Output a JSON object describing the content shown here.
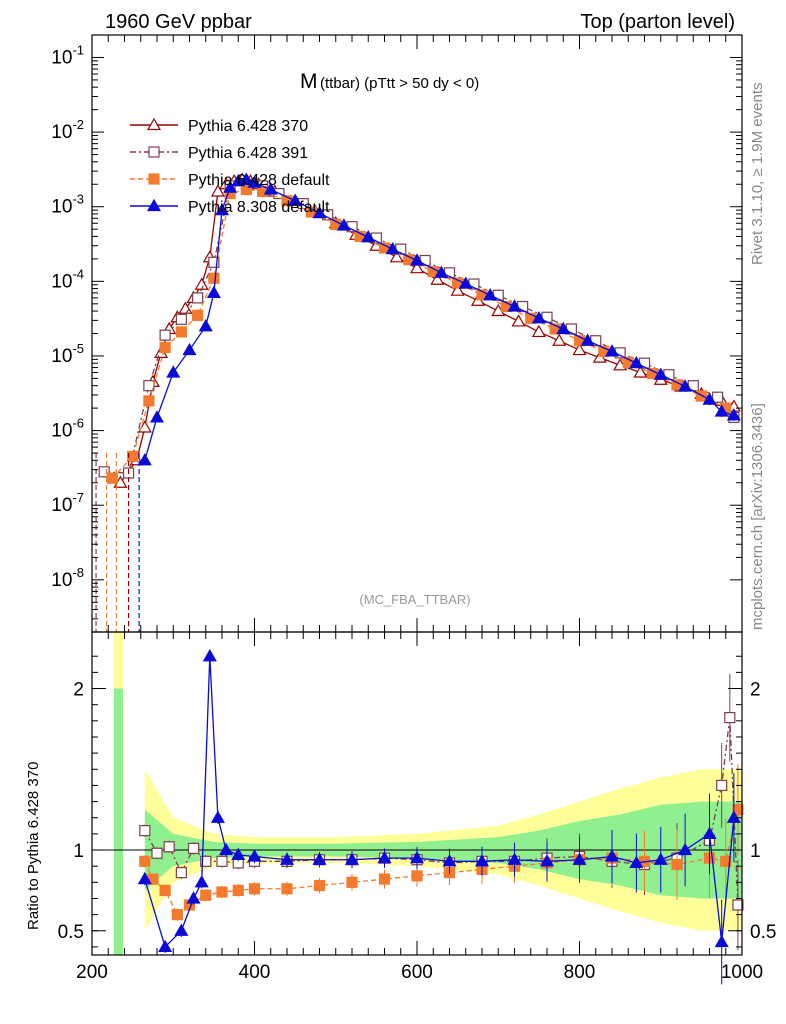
{
  "header": {
    "left": "1960 GeV ppbar",
    "right": "Top (parton level)"
  },
  "side_text": {
    "rivet": "Rivet 3.1.10, ≥ 1.9M events",
    "mcplots": "mcplots.cern.ch [arXiv:1306.3436]"
  },
  "main_title": {
    "main": "M",
    "sub": "(ttbar) (pTtt > 50 dy < 0)"
  },
  "analysis_label": "(MC_FBA_TTBAR)",
  "ratio_ylabel": "Ratio to Pythia 6.428 370",
  "colors": {
    "p6_370": "#990000",
    "p6_391": "#7a3f4f",
    "p6_default": "#f47a2e",
    "p8_default": "#0a0ad8",
    "band_green": "#90f090",
    "band_yellow": "#ffff99"
  },
  "chart_data": [
    {
      "type": "line",
      "name": "main",
      "log_y": true,
      "xlim": [
        200,
        1000
      ],
      "ylim": [
        2e-09,
        0.2
      ],
      "y_ticks": [
        "10^-8",
        "10^-7",
        "10^-6",
        "10^-5",
        "10^-4",
        "10^-3",
        "10^-2",
        "10^-1"
      ],
      "legend_position": "top-left",
      "series": [
        {
          "name": "Pythia 6.428 370",
          "x": [
            235,
            255,
            265,
            275,
            285,
            295,
            305,
            315,
            325,
            335,
            345,
            355,
            365,
            375,
            385,
            395,
            405,
            425,
            450,
            475,
            500,
            525,
            550,
            575,
            600,
            625,
            650,
            675,
            700,
            725,
            750,
            775,
            800,
            825,
            850,
            875,
            900,
            925,
            950,
            975,
            990
          ],
          "y": [
            2e-07,
            4e-07,
            1.1e-06,
            4.5e-06,
            1.1e-05,
            2.3e-05,
            3.3e-05,
            4.3e-05,
            6e-05,
            9e-05,
            0.00021,
            0.0016,
            0.002,
            0.0022,
            0.0023,
            0.0022,
            0.002,
            0.0016,
            0.0012,
            0.00085,
            0.0006,
            0.00042,
            0.0003,
            0.00021,
            0.00015,
            0.000105,
            7.5e-05,
            5.5e-05,
            4e-05,
            2.9e-05,
            2.1e-05,
            1.6e-05,
            1.2e-05,
            9.5e-06,
            7.5e-06,
            6e-06,
            4.8e-06,
            3.9e-06,
            3.1e-06,
            2.5e-06,
            2.1e-06
          ]
        },
        {
          "name": "Pythia 6.428 391",
          "x": [
            215,
            245,
            270,
            290,
            310,
            330,
            350,
            370,
            390,
            410,
            430,
            460,
            490,
            520,
            550,
            580,
            610,
            640,
            670,
            700,
            730,
            760,
            790,
            820,
            850,
            880,
            910,
            940,
            970,
            990
          ],
          "y": [
            2.8e-07,
            2.7e-07,
            4e-06,
            1.9e-05,
            3.1e-05,
            6e-05,
            0.00018,
            0.0019,
            0.002,
            0.0019,
            0.0015,
            0.0011,
            0.00078,
            0.00054,
            0.00038,
            0.00027,
            0.00019,
            0.00013,
            9.2e-05,
            6.5e-05,
            4.6e-05,
            3.3e-05,
            2.3e-05,
            1.6e-05,
            1.1e-05,
            8e-06,
            5.6e-06,
            4e-06,
            2.8e-06,
            1.5e-06
          ]
        },
        {
          "name": "Pythia 6.428 default",
          "x": [
            225,
            250,
            270,
            290,
            310,
            330,
            350,
            370,
            390,
            410,
            440,
            470,
            500,
            530,
            560,
            590,
            620,
            650,
            680,
            710,
            740,
            770,
            800,
            830,
            860,
            890,
            920,
            950,
            980
          ],
          "y": [
            2.3e-07,
            4.5e-07,
            2.5e-06,
            1.3e-05,
            2.1e-05,
            3.5e-05,
            0.00011,
            0.0015,
            0.0017,
            0.0016,
            0.0012,
            0.00085,
            0.00058,
            0.0004,
            0.00028,
            0.000195,
            0.000135,
            9.5e-05,
            6.6e-05,
            4.6e-05,
            3.2e-05,
            2.3e-05,
            1.6e-05,
            1.15e-05,
            8.2e-06,
            5.8e-06,
            4.1e-06,
            2.9e-06,
            2e-06
          ]
        },
        {
          "name": "Pythia 8.308 default",
          "x": [
            265,
            280,
            300,
            320,
            340,
            350,
            360,
            370,
            380,
            390,
            400,
            420,
            450,
            480,
            510,
            540,
            570,
            600,
            630,
            660,
            690,
            720,
            750,
            780,
            810,
            840,
            870,
            900,
            930,
            960,
            975,
            990
          ],
          "y": [
            4e-07,
            1.5e-06,
            6e-06,
            1.2e-05,
            2.5e-05,
            7e-05,
            0.0009,
            0.0018,
            0.0022,
            0.0023,
            0.0021,
            0.0017,
            0.0012,
            0.00082,
            0.00056,
            0.00039,
            0.00027,
            0.00019,
            0.00013,
            9.3e-05,
            6.5e-05,
            4.6e-05,
            3.2e-05,
            2.3e-05,
            1.6e-05,
            1.15e-05,
            8e-06,
            5.6e-06,
            3.9e-06,
            2.6e-06,
            1.8e-06,
            1.6e-06
          ]
        }
      ]
    },
    {
      "type": "line",
      "name": "ratio",
      "ylabel": "Ratio to Pythia 6.428 370",
      "xlim": [
        200,
        1000
      ],
      "ylim": [
        0.35,
        2.35
      ],
      "x_ticks": [
        200,
        400,
        600,
        800,
        1000
      ],
      "y_ticks": [
        0.5,
        1,
        2
      ],
      "band": {
        "x": [
          265,
          300,
          350,
          400,
          500,
          600,
          700,
          750,
          800,
          850,
          900,
          950,
          1000
        ],
        "green": [
          0.25,
          0.1,
          0.05,
          0.04,
          0.04,
          0.05,
          0.08,
          0.12,
          0.18,
          0.22,
          0.28,
          0.3,
          0.3
        ],
        "yellow": [
          0.5,
          0.2,
          0.1,
          0.08,
          0.08,
          0.1,
          0.15,
          0.22,
          0.3,
          0.38,
          0.45,
          0.5,
          0.5
        ]
      },
      "series": [
        {
          "name": "Pythia 6.428 391",
          "x": [
            265,
            280,
            295,
            310,
            325,
            340,
            360,
            380,
            400,
            440,
            480,
            520,
            560,
            600,
            640,
            680,
            720,
            760,
            800,
            840,
            880,
            920,
            960,
            975,
            985,
            995
          ],
          "y": [
            1.12,
            0.98,
            1.02,
            0.86,
            1.01,
            0.93,
            0.93,
            0.92,
            0.93,
            0.93,
            0.94,
            0.94,
            0.95,
            0.94,
            0.92,
            0.93,
            0.93,
            0.95,
            0.96,
            0.93,
            0.91,
            0.95,
            1.06,
            1.4,
            1.82,
            0.66
          ]
        },
        {
          "name": "Pythia 6.428 default",
          "x": [
            265,
            275,
            290,
            305,
            320,
            340,
            360,
            380,
            400,
            440,
            480,
            520,
            560,
            600,
            640,
            680,
            720,
            760,
            800,
            840,
            880,
            920,
            960,
            980,
            995
          ],
          "y": [
            0.93,
            0.82,
            0.75,
            0.6,
            0.66,
            0.72,
            0.74,
            0.75,
            0.76,
            0.76,
            0.78,
            0.8,
            0.82,
            0.84,
            0.86,
            0.88,
            0.9,
            0.92,
            0.94,
            0.95,
            0.93,
            0.91,
            0.95,
            0.93,
            1.25
          ]
        },
        {
          "name": "Pythia 8.308 default",
          "x": [
            265,
            290,
            310,
            325,
            335,
            345,
            355,
            365,
            380,
            400,
            440,
            480,
            520,
            560,
            600,
            640,
            680,
            720,
            760,
            800,
            840,
            870,
            900,
            930,
            960,
            975,
            990
          ],
          "y": [
            0.82,
            0.4,
            0.5,
            0.7,
            0.8,
            2.2,
            1.2,
            1.0,
            0.97,
            0.96,
            0.94,
            0.94,
            0.94,
            0.95,
            0.95,
            0.93,
            0.93,
            0.94,
            0.93,
            0.94,
            0.96,
            0.92,
            0.94,
            1.0,
            1.1,
            0.43,
            1.2
          ]
        }
      ]
    }
  ]
}
